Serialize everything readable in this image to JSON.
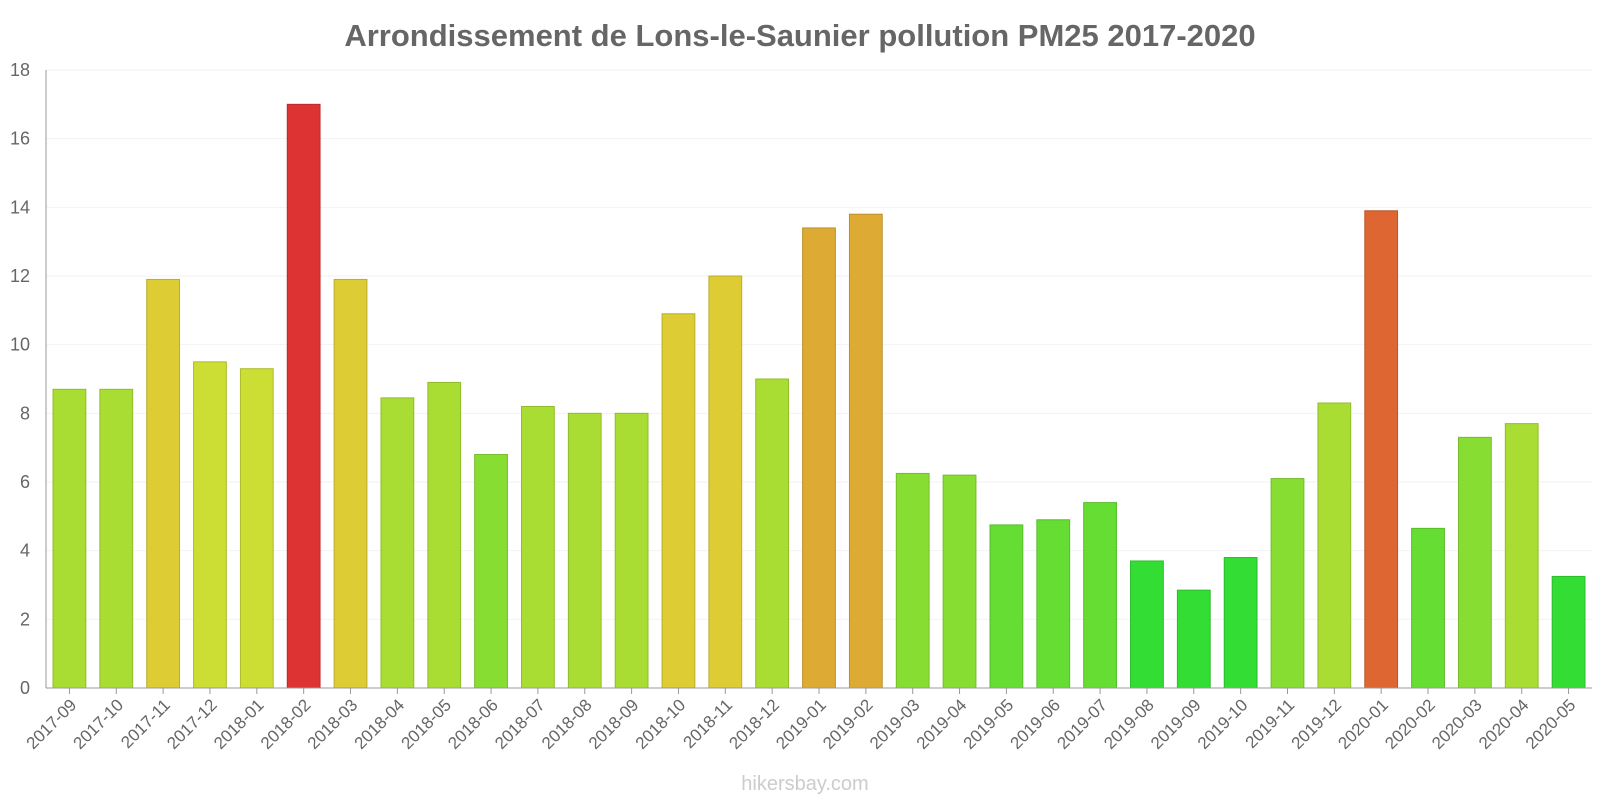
{
  "chart_data": {
    "type": "bar",
    "title": "Arrondissement de Lons-le-Saunier pollution PM25 2017-2020",
    "xlabel": "",
    "ylabel": "",
    "ylim": [
      0,
      18
    ],
    "yticks": [
      "0",
      "2",
      "4",
      "6",
      "8",
      "10",
      "12",
      "14",
      "16",
      "18"
    ],
    "grid": true,
    "categories": [
      "2017-09",
      "2017-10",
      "2017-11",
      "2017-12",
      "2018-01",
      "2018-02",
      "2018-03",
      "2018-04",
      "2018-05",
      "2018-06",
      "2018-07",
      "2018-08",
      "2018-09",
      "2018-10",
      "2018-11",
      "2018-12",
      "2019-01",
      "2019-02",
      "2019-03",
      "2019-04",
      "2019-05",
      "2019-06",
      "2019-07",
      "2019-08",
      "2019-09",
      "2019-10",
      "2019-11",
      "2019-12",
      "2020-01",
      "2020-02",
      "2020-03",
      "2020-04",
      "2020-05"
    ],
    "values": [
      8.7,
      8.7,
      11.9,
      9.5,
      9.3,
      17.0,
      11.9,
      8.45,
      8.9,
      6.8,
      8.2,
      8.0,
      8.0,
      10.9,
      12.0,
      9.0,
      13.4,
      13.8,
      6.25,
      6.2,
      4.75,
      4.9,
      5.4,
      3.7,
      2.85,
      3.8,
      6.1,
      8.3,
      13.9,
      4.65,
      7.3,
      7.7,
      3.25
    ],
    "colors": [
      "#aadd33",
      "#aadd33",
      "#ddcc33",
      "#ccdd33",
      "#ccdd33",
      "#dd3333",
      "#ddcc33",
      "#aadd33",
      "#aadd33",
      "#88dd33",
      "#aadd33",
      "#aadd33",
      "#aadd33",
      "#ddcc33",
      "#ddcc33",
      "#aadd33",
      "#ddaa33",
      "#ddaa33",
      "#88dd33",
      "#88dd33",
      "#66dd33",
      "#66dd33",
      "#66dd33",
      "#33dd33",
      "#33dd33",
      "#33dd33",
      "#88dd33",
      "#aadd33",
      "#dd6633",
      "#66dd33",
      "#88dd33",
      "#aadd33",
      "#33dd33"
    ],
    "watermark": "hikersbay.com"
  }
}
